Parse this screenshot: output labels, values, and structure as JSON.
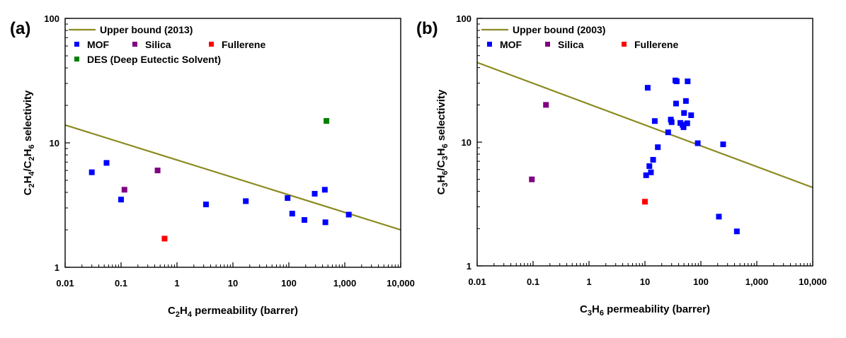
{
  "chart_data": [
    {
      "type": "scatter",
      "panel_label": "(a)",
      "x_scale": "log",
      "y_scale": "log",
      "xlim": [
        0.01,
        10000
      ],
      "ylim": [
        1,
        100
      ],
      "x_ticks": [
        "0.01",
        "0.1",
        "1",
        "10",
        "100",
        "1,000",
        "10,000"
      ],
      "y_ticks": [
        "1",
        "10",
        "100"
      ],
      "xlabel": {
        "pre": "C",
        "sub1": "2",
        "mid": "H",
        "sub2": "4",
        "post": " permeability (barrer)"
      },
      "ylabel": {
        "a": "C",
        "a_sub": "2",
        "b": "H",
        "b_sub": "4",
        "c": "/C",
        "c_sub": "2",
        "d": "H",
        "d_sub": "6",
        "e": " selectivity"
      },
      "upper_bound": {
        "name": "Upper bound (2013)",
        "color": "#8b8b22",
        "x": [
          0.01,
          10000
        ],
        "y": [
          13.9,
          2.0
        ]
      },
      "legend_rows": [
        [
          "MOF",
          "Silica",
          "Fullerene"
        ],
        [
          "DES (Deep Eutectic Solvent)"
        ]
      ],
      "series": [
        {
          "name": "MOF",
          "color": "#0000ff",
          "points": [
            [
              0.03,
              5.8
            ],
            [
              0.055,
              6.9
            ],
            [
              0.1,
              3.5
            ],
            [
              3.3,
              3.2
            ],
            [
              17,
              3.4
            ],
            [
              95,
              3.6
            ],
            [
              115,
              2.7
            ],
            [
              190,
              2.4
            ],
            [
              290,
              3.9
            ],
            [
              440,
              4.2
            ],
            [
              450,
              2.3
            ],
            [
              1180,
              2.65
            ]
          ]
        },
        {
          "name": "Silica",
          "color": "#800080",
          "points": [
            [
              0.115,
              4.2
            ],
            [
              0.45,
              6.0
            ]
          ]
        },
        {
          "name": "Fullerene",
          "color": "#ff0000",
          "points": [
            [
              0.6,
              1.7
            ]
          ]
        },
        {
          "name": "DES (Deep Eutectic Solvent)",
          "color": "#008000",
          "points": [
            [
              470,
              15
            ]
          ]
        }
      ]
    },
    {
      "type": "scatter",
      "panel_label": "(b)",
      "x_scale": "log",
      "y_scale": "log",
      "xlim": [
        0.01,
        10000
      ],
      "ylim": [
        1,
        100
      ],
      "x_ticks": [
        "0.01",
        "0.1",
        "1",
        "10",
        "100",
        "1,000",
        "10,000"
      ],
      "y_ticks": [
        "1",
        "10",
        "100"
      ],
      "xlabel": {
        "pre": "C",
        "sub1": "3",
        "mid": "H",
        "sub2": "6",
        "post": " permeability (barrer)"
      },
      "ylabel": {
        "a": "C",
        "a_sub": "3",
        "b": "H",
        "b_sub": "6",
        "c": "/C",
        "c_sub": "3",
        "d": "H",
        "d_sub": "6",
        "e": " selectivity"
      },
      "upper_bound": {
        "name": "Upper bound (2003)",
        "color": "#8b8b22",
        "x": [
          0.01,
          10000
        ],
        "y": [
          44,
          4.3
        ]
      },
      "legend_rows": [
        [
          "MOF",
          "Silica",
          "Fullerene"
        ]
      ],
      "series": [
        {
          "name": "MOF",
          "color": "#0000ff",
          "points": [
            [
              10.5,
              5.4
            ],
            [
              11.2,
              27.5
            ],
            [
              12,
              6.4
            ],
            [
              12.8,
              5.7
            ],
            [
              14,
              7.2
            ],
            [
              15,
              14.8
            ],
            [
              17,
              9.1
            ],
            [
              26,
              12.0
            ],
            [
              29,
              15.2
            ],
            [
              30,
              14.5
            ],
            [
              35,
              31.5
            ],
            [
              37,
              31.0
            ],
            [
              36,
              20.5
            ],
            [
              43,
              14.3
            ],
            [
              47,
              13.8
            ],
            [
              49,
              13.2
            ],
            [
              50,
              17.2
            ],
            [
              54,
              21.5
            ],
            [
              57,
              14.2
            ],
            [
              58,
              31.0
            ],
            [
              67,
              16.5
            ],
            [
              88,
              9.8
            ],
            [
              210,
              2.5
            ],
            [
              250,
              9.6
            ],
            [
              440,
              1.9
            ]
          ]
        },
        {
          "name": "Silica",
          "color": "#800080",
          "points": [
            [
              0.095,
              5.0
            ],
            [
              0.17,
              20.0
            ]
          ]
        },
        {
          "name": "Fullerene",
          "color": "#ff0000",
          "points": [
            [
              10,
              3.3
            ]
          ]
        }
      ]
    }
  ]
}
